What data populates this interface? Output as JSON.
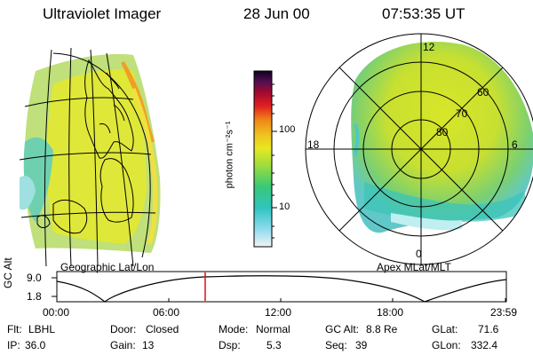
{
  "header": {
    "instrument": "Ultraviolet Imager",
    "date": "28 Jun 00",
    "time": "07:53:35 UT"
  },
  "panels": {
    "left_label": "Geographic Lat/Lon",
    "right_label": "Apex  MLat/MLT"
  },
  "colorbar": {
    "unit_label": "photon cm⁻²s⁻¹",
    "ticks": [
      "100",
      "10"
    ]
  },
  "polar_plot": {
    "mlt_labels": {
      "top": "12",
      "left": "18",
      "right": "6",
      "bottom": "0"
    },
    "mlat_labels": [
      "60",
      "70",
      "80"
    ]
  },
  "altitude_plot": {
    "ylabel": "GC Alt",
    "ymax": "9.0",
    "ymin": "1.8",
    "x_ticks": [
      "00:00",
      "06:00",
      "12:00",
      "18:00",
      "23:59"
    ],
    "current_time_fraction": 0.33
  },
  "info": {
    "row1": [
      {
        "label": "Flt:",
        "value": "LBHL"
      },
      {
        "label": "Door:",
        "value": "Closed"
      },
      {
        "label": "Mode:",
        "value": "Normal"
      },
      {
        "label": "GC Alt:",
        "value": "8.8 Re"
      },
      {
        "label": "GLat:",
        "value": "71.6"
      }
    ],
    "row2": [
      {
        "label": "IP:",
        "value": "36.0"
      },
      {
        "label": "Gain:",
        "value": "13"
      },
      {
        "label": "Dsp:",
        "value": "5.3"
      },
      {
        "label": "Seq:",
        "value": "39"
      },
      {
        "label": "GLon:",
        "value": "332.4"
      }
    ]
  }
}
